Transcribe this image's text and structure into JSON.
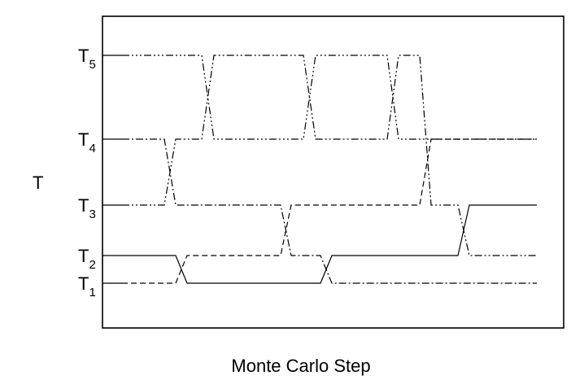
{
  "diagram": {
    "axis_label_y": "T",
    "axis_label_x": "Monte Carlo Step",
    "levels": [
      {
        "id": "T1",
        "base": "T",
        "sub": "1"
      },
      {
        "id": "T2",
        "base": "T",
        "sub": "2"
      },
      {
        "id": "T3",
        "base": "T",
        "sub": "3"
      },
      {
        "id": "T4",
        "base": "T",
        "sub": "4"
      },
      {
        "id": "T5",
        "base": "T",
        "sub": "5"
      }
    ],
    "replicas": [
      {
        "style": "solid",
        "start_level": "T2",
        "swaps": [
          {
            "to": "T1"
          },
          {
            "to": "T2"
          },
          {
            "to": "T3"
          }
        ]
      },
      {
        "style": "dash",
        "start_level": "T1",
        "swaps": [
          {
            "to": "T2"
          },
          {
            "to": "T3"
          },
          {
            "to": "T4"
          }
        ]
      },
      {
        "style": "dashdot",
        "start_level": "T4",
        "swaps": [
          {
            "to": "T3"
          },
          {
            "to": "T2"
          },
          {
            "to": "T1"
          }
        ]
      },
      {
        "style": "dash2dot",
        "start_level": "T3",
        "swaps": [
          {
            "to": "T4"
          },
          {
            "to": "T5"
          },
          {
            "to": "T4"
          },
          {
            "to": "T5"
          },
          {
            "to": "T3"
          },
          {
            "to": "T2"
          }
        ]
      },
      {
        "style": "dash3dot",
        "start_level": "T5",
        "swaps": [
          {
            "to": "T4"
          },
          {
            "to": "T5"
          },
          {
            "to": "T4"
          },
          {
            "to": "T5"
          }
        ]
      }
    ]
  }
}
